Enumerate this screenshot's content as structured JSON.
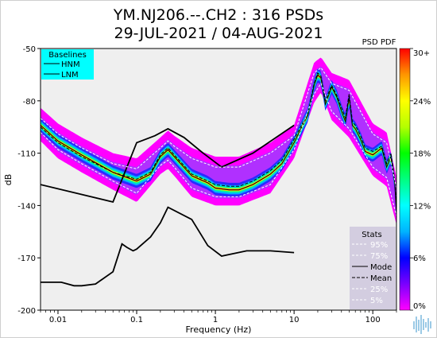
{
  "chart_data": {
    "type": "heatmap",
    "title": "YM.NJ206.--.CH2 : 316 PSDs",
    "subtitle": "29-JUL-2021 / 04-AUG-2021",
    "xlabel": "Frequency (Hz)",
    "ylabel": "dB",
    "x_scale": "log",
    "xlim": [
      0.006,
      200
    ],
    "ylim": [
      -200,
      -50
    ],
    "x_ticks": [
      0.01,
      0.1,
      1,
      10,
      100
    ],
    "x_tick_labels": [
      "0.01",
      "0.1",
      "1",
      "10",
      "100"
    ],
    "y_ticks": [
      -50,
      -80,
      -110,
      -140,
      -170,
      -200
    ],
    "y_tick_labels": [
      "-50",
      "-80",
      "-110",
      "-140",
      "-170",
      "-200"
    ],
    "colorbar": {
      "label": "PSD PDF",
      "ticks": [
        30,
        24,
        18,
        12,
        6,
        0
      ],
      "tick_labels": [
        "30+",
        "24%",
        "18%",
        "12%",
        "6%",
        "0%"
      ],
      "colors": [
        "#ff00ff",
        "#7a00ff",
        "#0000ff",
        "#00b4ff",
        "#00ffff",
        "#00ff80",
        "#00ff00",
        "#b4ff00",
        "#ffff00",
        "#ff9600",
        "#ff0000"
      ]
    },
    "baselines_legend": {
      "title": "Baselines",
      "items": [
        "HNM",
        "LNM"
      ]
    },
    "stats_legend": {
      "title": "Stats",
      "items": [
        "95%",
        "75%",
        "Mode",
        "Mean",
        "25%",
        "5%"
      ]
    },
    "series": [
      {
        "name": "HNM",
        "x": [
          0.006,
          0.05,
          0.1,
          0.17,
          0.25,
          0.4,
          0.7,
          1.2,
          3,
          10
        ],
        "y": [
          -128,
          -138,
          -104,
          -100,
          -96,
          -101,
          -110,
          -118,
          -110,
          -94
        ]
      },
      {
        "name": "LNM",
        "x": [
          0.006,
          0.011,
          0.016,
          0.02,
          0.03,
          0.05,
          0.065,
          0.075,
          0.09,
          0.1,
          0.15,
          0.2,
          0.25,
          0.5,
          0.8,
          1.2,
          2.5,
          5,
          10
        ],
        "y": [
          -184,
          -184,
          -186,
          -186,
          -185,
          -178,
          -162,
          -164,
          -166,
          -165,
          -158,
          -150,
          -141,
          -148,
          -163,
          -169,
          -166,
          -166,
          -167
        ]
      },
      {
        "name": "Mode",
        "x": [
          0.006,
          0.01,
          0.02,
          0.05,
          0.1,
          0.15,
          0.2,
          0.25,
          0.3,
          0.5,
          0.8,
          1,
          1.5,
          2,
          3,
          5,
          7,
          10,
          15,
          18,
          20,
          22,
          25,
          30,
          35,
          40,
          45,
          50,
          55,
          60,
          70,
          80,
          100,
          130,
          150,
          170,
          190,
          200
        ],
        "y": [
          -94,
          -103,
          -111,
          -121,
          -126,
          -122,
          -112,
          -108,
          -112,
          -123,
          -127,
          -130,
          -131,
          -131,
          -128,
          -122,
          -116,
          -104,
          -88,
          -71,
          -65,
          -67,
          -82,
          -72,
          -78,
          -86,
          -92,
          -78,
          -94,
          -96,
          -102,
          -109,
          -111,
          -107,
          -118,
          -112,
          -127,
          -145
        ]
      },
      {
        "name": "Mean",
        "x": [
          0.006,
          0.01,
          0.02,
          0.05,
          0.1,
          0.15,
          0.2,
          0.25,
          0.3,
          0.5,
          0.8,
          1,
          1.5,
          2,
          3,
          5,
          7,
          10,
          15,
          18,
          20,
          22,
          25,
          30,
          35,
          40,
          45,
          50,
          55,
          60,
          70,
          80,
          100,
          130,
          150,
          170,
          190,
          200
        ],
        "y": [
          -95,
          -104,
          -112,
          -121,
          -125,
          -121,
          -111,
          -107,
          -111,
          -122,
          -126,
          -128,
          -129,
          -129,
          -126,
          -120,
          -114,
          -102,
          -87,
          -70,
          -64,
          -66,
          -80,
          -71,
          -77,
          -84,
          -90,
          -76,
          -92,
          -94,
          -100,
          -107,
          -109,
          -106,
          -116,
          -110,
          -125,
          -143
        ]
      },
      {
        "name": "95%",
        "x": [
          0.006,
          0.01,
          0.02,
          0.05,
          0.1,
          0.2,
          0.25,
          0.3,
          0.5,
          1,
          2,
          5,
          10,
          18,
          22,
          30,
          50,
          100,
          150,
          200
        ],
        "y": [
          -90,
          -99,
          -107,
          -116,
          -119,
          -107,
          -103,
          -106,
          -113,
          -118,
          -118,
          -110,
          -100,
          -64,
          -61,
          -70,
          -74,
          -99,
          -104,
          -130
        ]
      },
      {
        "name": "5%",
        "x": [
          0.006,
          0.01,
          0.02,
          0.05,
          0.1,
          0.2,
          0.25,
          0.3,
          0.5,
          1,
          2,
          5,
          10,
          18,
          22,
          30,
          50,
          100,
          150,
          200
        ],
        "y": [
          -98,
          -108,
          -116,
          -126,
          -133,
          -117,
          -114,
          -118,
          -130,
          -135,
          -135,
          -128,
          -108,
          -76,
          -70,
          -86,
          -96,
          -118,
          -124,
          -146
        ]
      }
    ]
  }
}
